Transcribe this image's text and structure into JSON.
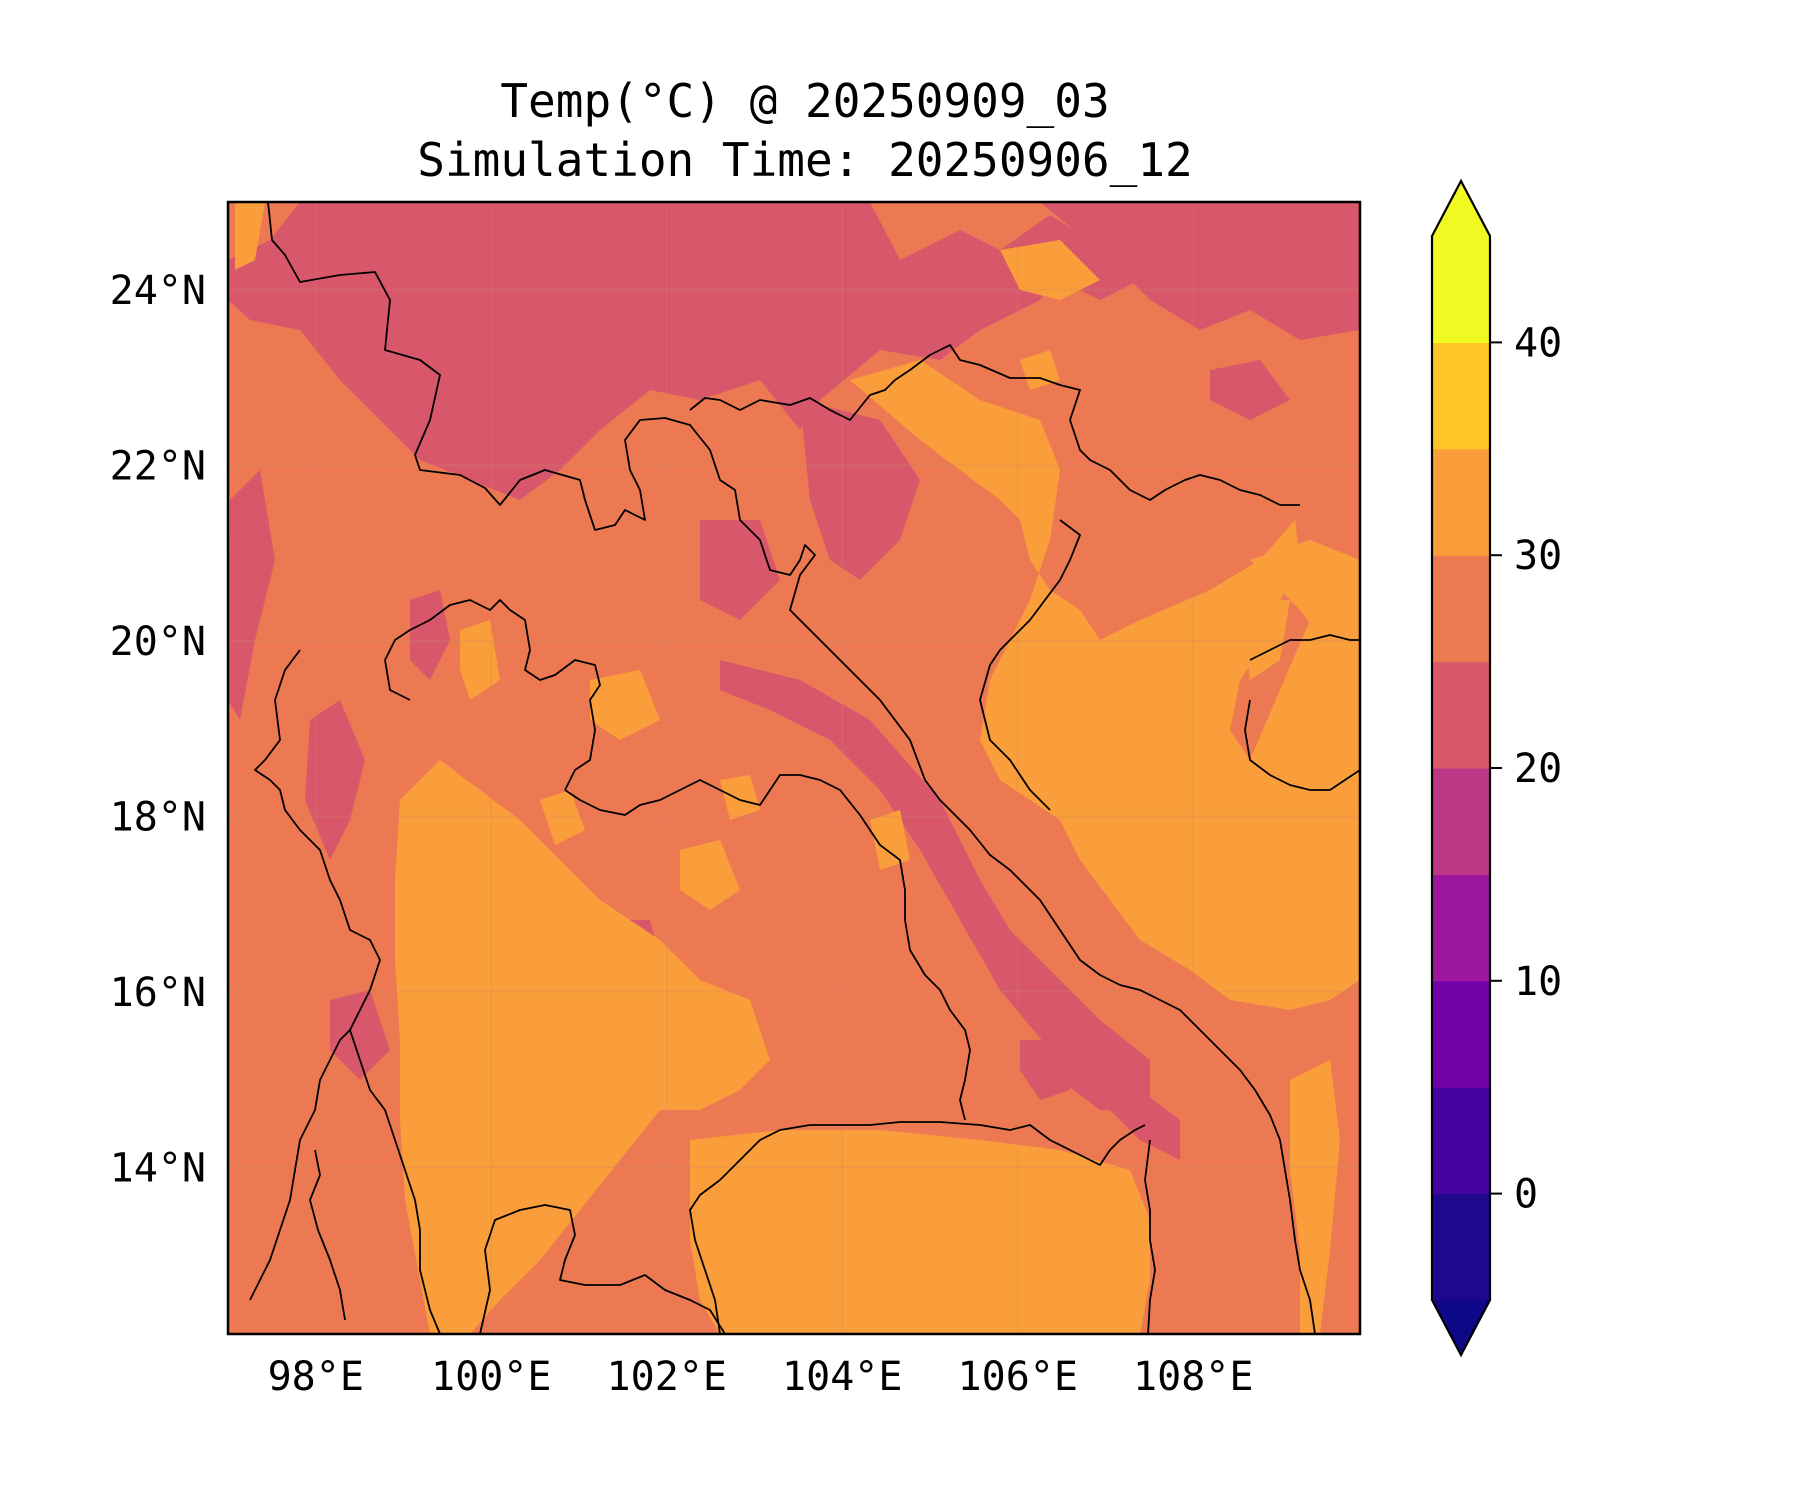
{
  "title": {
    "line1": "Temp(°C) @ 20250909_03",
    "line2": "Simulation Time: 20250906_12"
  },
  "map": {
    "extent": {
      "lon_min": 97.0,
      "lon_max": 109.9,
      "lat_min": 12.1,
      "lat_max": 25.0
    },
    "gridlines": true,
    "coastlines": true,
    "country_borders": true,
    "lon_ticks": [
      98,
      100,
      102,
      104,
      106,
      108
    ],
    "lon_tick_labels": [
      "98°E",
      "100°E",
      "102°E",
      "104°E",
      "106°E",
      "108°E"
    ],
    "lat_ticks": [
      24,
      22,
      20,
      18,
      16,
      14
    ],
    "lat_tick_labels": [
      "24°N",
      "22°N",
      "20°N",
      "18°N",
      "16°N",
      "14°N"
    ],
    "field_classes": {
      "cooler_highlands": "20–25",
      "lowlands": "25–30",
      "warm_plains_and_sea": "30–35",
      "hot_spots": "35–40"
    }
  },
  "colorbar": {
    "colormap": "plasma",
    "extend": "both",
    "levels": [
      -5,
      0,
      5,
      10,
      15,
      20,
      25,
      30,
      35,
      40,
      45
    ],
    "colors": [
      "#1f088d",
      "#47039f",
      "#7301a8",
      "#9c179e",
      "#bd3786",
      "#d8576b",
      "#ed7953",
      "#fa9e3b",
      "#fdc527",
      "#f0f921"
    ],
    "under_color": "#0d0887",
    "over_color": "#f0f921",
    "ticks": [
      0,
      10,
      20,
      30,
      40
    ],
    "tick_labels": [
      "0",
      "10",
      "20",
      "30",
      "40"
    ]
  }
}
